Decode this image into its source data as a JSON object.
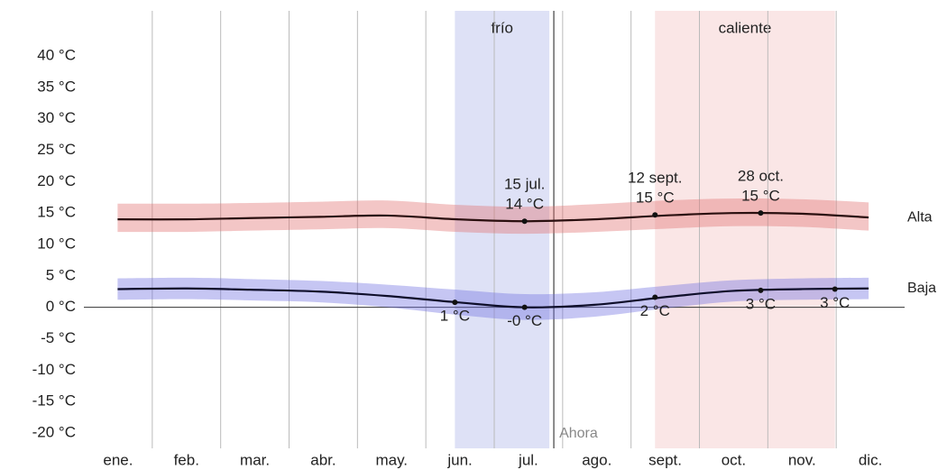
{
  "chart_data": {
    "type": "line",
    "categories": [
      "ene.",
      "feb.",
      "mar.",
      "abr.",
      "may.",
      "jun.",
      "jul.",
      "ago.",
      "sept.",
      "oct.",
      "nov.",
      "dic."
    ],
    "xlim": [
      0,
      365
    ],
    "ylim": [
      -20,
      40
    ],
    "yticks": [
      {
        "value": 40,
        "label": "40 °C"
      },
      {
        "value": 35,
        "label": "35 °C"
      },
      {
        "value": 30,
        "label": "30 °C"
      },
      {
        "value": 25,
        "label": "25 °C"
      },
      {
        "value": 20,
        "label": "20 °C"
      },
      {
        "value": 15,
        "label": "15 °C"
      },
      {
        "value": 10,
        "label": "10 °C"
      },
      {
        "value": 5,
        "label": "5 °C"
      },
      {
        "value": 0,
        "label": "0 °C"
      },
      {
        "value": -5,
        "label": "-5 °C"
      },
      {
        "value": -10,
        "label": "-10 °C"
      },
      {
        "value": -15,
        "label": "-15 °C"
      },
      {
        "value": -20,
        "label": "-20 °C"
      }
    ],
    "x": [
      15,
      46,
      74,
      105,
      135,
      166,
      196,
      227,
      258,
      288,
      319,
      349
    ],
    "series": [
      {
        "name": "Alta",
        "color": "#2a0f0f",
        "band_color": "#e07070",
        "values": [
          14,
          14,
          14.2,
          14.4,
          14.6,
          14,
          13.7,
          14,
          14.6,
          15,
          14.9,
          14.3
        ],
        "range": [
          [
            12,
            16.5
          ],
          [
            12,
            16.5
          ],
          [
            12.2,
            16.6
          ],
          [
            12.4,
            16.8
          ],
          [
            12.6,
            17
          ],
          [
            12,
            16.3
          ],
          [
            11.7,
            16
          ],
          [
            12,
            16.4
          ],
          [
            12.5,
            17
          ],
          [
            12.9,
            17.3
          ],
          [
            12.8,
            17.2
          ],
          [
            12.2,
            16.7
          ]
        ]
      },
      {
        "name": "Baja",
        "color": "#0e0e2a",
        "band_color": "#7070e0",
        "values": [
          2.9,
          3,
          2.8,
          2.5,
          1.8,
          0.8,
          0,
          0.4,
          1.6,
          2.6,
          2.9,
          3
        ],
        "range": [
          [
            1.2,
            4.6
          ],
          [
            1.3,
            4.7
          ],
          [
            1.1,
            4.5
          ],
          [
            0.8,
            4.2
          ],
          [
            0,
            3.6
          ],
          [
            -1.2,
            2.8
          ],
          [
            -2,
            2.1
          ],
          [
            -1.5,
            2.4
          ],
          [
            -0.2,
            3.4
          ],
          [
            0.9,
            4.3
          ],
          [
            1.2,
            4.6
          ],
          [
            1.3,
            4.7
          ]
        ]
      }
    ],
    "bands": [
      {
        "label": "frío",
        "x": [
          165,
          207
        ],
        "color": "#c8cdf0"
      },
      {
        "label": "caliente",
        "x": [
          254,
          334
        ],
        "color": "#f6d6d6"
      }
    ],
    "now": {
      "label": "Ahora",
      "x": 209
    },
    "annotations": [
      {
        "x": 196,
        "value": 13.7,
        "labels": [
          "15 jul.",
          "14 °C"
        ],
        "position": "above"
      },
      {
        "x": 254,
        "value": 14.7,
        "labels": [
          "12 sept.",
          "15 °C"
        ],
        "position": "above"
      },
      {
        "x": 301,
        "value": 15,
        "labels": [
          "28 oct.",
          "15 °C"
        ],
        "position": "above"
      },
      {
        "x": 165,
        "value": 0.8,
        "labels": [
          "1 °C"
        ],
        "position": "below"
      },
      {
        "x": 196,
        "value": 0,
        "labels": [
          "-0 °C"
        ],
        "position": "below"
      },
      {
        "x": 254,
        "value": 1.6,
        "labels": [
          "2 °C"
        ],
        "position": "below"
      },
      {
        "x": 301,
        "value": 2.7,
        "labels": [
          "3 °C"
        ],
        "position": "below"
      },
      {
        "x": 334,
        "value": 2.9,
        "labels": [
          "3 °C"
        ],
        "position": "below"
      }
    ]
  }
}
